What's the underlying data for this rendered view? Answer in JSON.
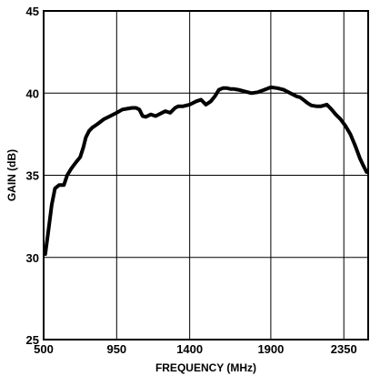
{
  "chart_data": {
    "type": "line",
    "title": "",
    "xlabel": "FREQUENCY (MHz)",
    "ylabel": "GAIN (dB)",
    "xlim": [
      500,
      2500
    ],
    "ylim": [
      25,
      45
    ],
    "xticks": [
      500,
      950,
      1400,
      1900,
      2350
    ],
    "xtick_labels": [
      "500",
      "950",
      "1400",
      "1900",
      "2350"
    ],
    "yticks": [
      25,
      30,
      35,
      40,
      45
    ],
    "ytick_labels": [
      "25",
      "30",
      "35",
      "40",
      "45"
    ],
    "grid": true,
    "line_color": "#000000",
    "series": [
      {
        "x": [
          510,
          530,
          550,
          570,
          595,
          625,
          645,
          670,
          700,
          725,
          745,
          760,
          780,
          800,
          830,
          870,
          910,
          950,
          985,
          1015,
          1045,
          1070,
          1090,
          1110,
          1130,
          1160,
          1190,
          1220,
          1250,
          1280,
          1310,
          1330,
          1360,
          1400,
          1440,
          1470,
          1500,
          1530,
          1555,
          1580,
          1605,
          1630,
          1650,
          1670,
          1700,
          1740,
          1780,
          1820,
          1860,
          1900,
          1940,
          1980,
          2020,
          2060,
          2080,
          2100,
          2125,
          2150,
          2180,
          2210,
          2245,
          2275,
          2300,
          2330,
          2360,
          2390,
          2420,
          2450,
          2470,
          2490
        ],
        "y": [
          30.2,
          31.7,
          33.2,
          34.2,
          34.4,
          34.4,
          35.0,
          35.4,
          35.8,
          36.1,
          36.7,
          37.3,
          37.7,
          37.9,
          38.1,
          38.4,
          38.6,
          38.8,
          39.0,
          39.05,
          39.1,
          39.1,
          39.0,
          38.6,
          38.55,
          38.7,
          38.6,
          38.75,
          38.9,
          38.8,
          39.1,
          39.2,
          39.2,
          39.3,
          39.5,
          39.6,
          39.3,
          39.5,
          39.8,
          40.2,
          40.3,
          40.3,
          40.25,
          40.25,
          40.2,
          40.1,
          40.0,
          40.05,
          40.2,
          40.35,
          40.3,
          40.2,
          40.0,
          39.8,
          39.75,
          39.6,
          39.4,
          39.25,
          39.2,
          39.2,
          39.3,
          39.0,
          38.7,
          38.4,
          38.0,
          37.5,
          36.8,
          36.0,
          35.6,
          35.2
        ]
      }
    ]
  }
}
